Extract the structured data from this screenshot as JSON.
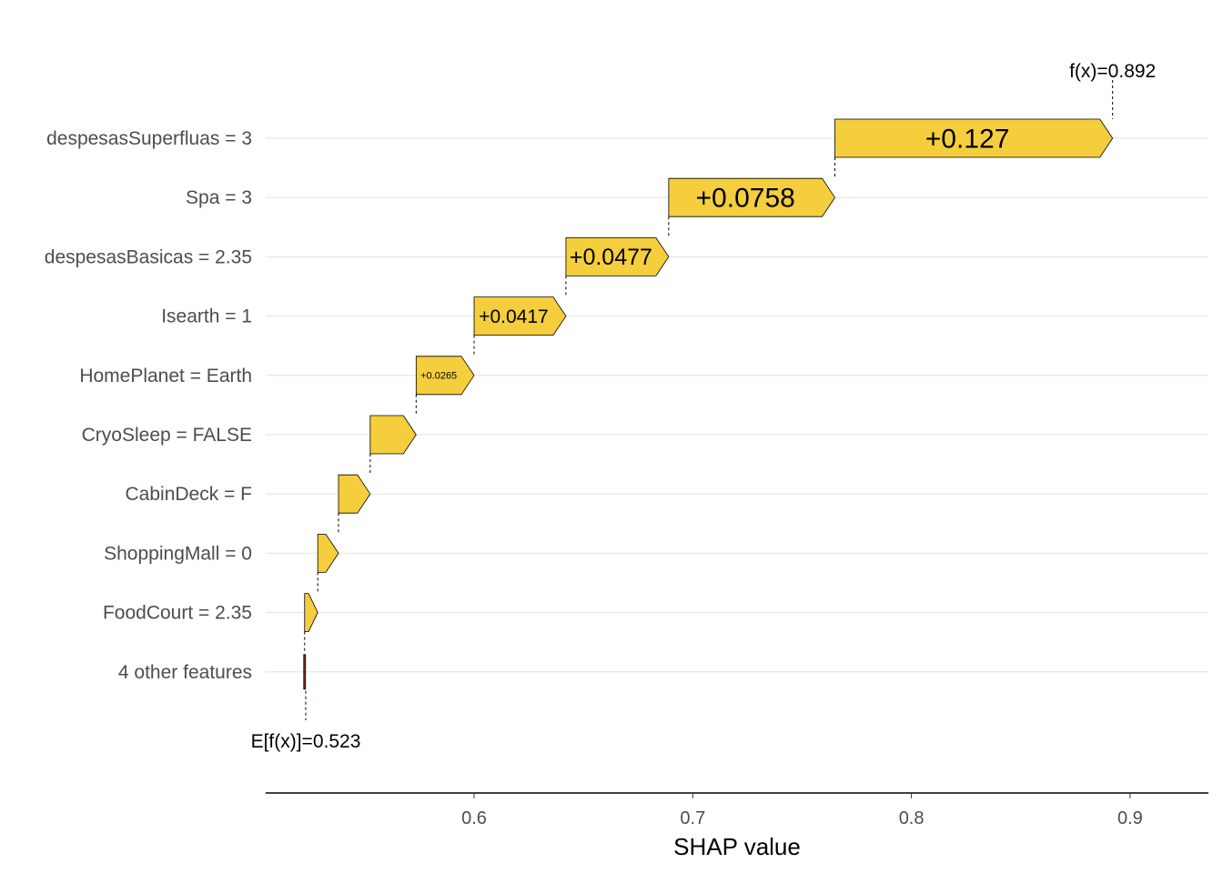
{
  "chart_data": {
    "type": "waterfall",
    "xlabel": "SHAP value",
    "base_label": "E[f(x)]=0.523",
    "final_label": "f(x)=0.892",
    "base_value": 0.523,
    "final_value": 0.892,
    "xlim": [
      0.51,
      0.935
    ],
    "xticks": [
      0.6,
      0.7,
      0.8,
      0.9
    ],
    "xtick_labels": [
      "0.6",
      "0.7",
      "0.8",
      "0.9"
    ],
    "bar_color": "#F5CE3D",
    "features": [
      {
        "label": "despesasSuperfluas = 3",
        "start": 0.765,
        "end": 0.892,
        "text": "+0.127",
        "fontSize": 30
      },
      {
        "label": "Spa = 3",
        "start": 0.689,
        "end": 0.765,
        "text": "+0.0758",
        "fontSize": 30
      },
      {
        "label": "despesasBasicas = 2.35",
        "start": 0.642,
        "end": 0.689,
        "text": "+0.0477",
        "fontSize": 25
      },
      {
        "label": "Isearth = 1",
        "start": 0.6,
        "end": 0.642,
        "text": "+0.0417",
        "fontSize": 21
      },
      {
        "label": "HomePlanet = Earth",
        "start": 0.5735,
        "end": 0.6,
        "text": "+0.0265",
        "fontSize": 11
      },
      {
        "label": "CryoSleep = FALSE",
        "start": 0.5525,
        "end": 0.5735,
        "text": "",
        "fontSize": 0
      },
      {
        "label": "CabinDeck = F",
        "start": 0.538,
        "end": 0.5525,
        "text": "",
        "fontSize": 0
      },
      {
        "label": "ShoppingMall = 0",
        "start": 0.5285,
        "end": 0.538,
        "text": "",
        "fontSize": 0
      },
      {
        "label": "FoodCourt = 2.35",
        "start": 0.5225,
        "end": 0.5285,
        "text": "",
        "fontSize": 0
      },
      {
        "label": "4 other features",
        "start": 0.5225,
        "end": 0.5226,
        "text": "",
        "fontSize": 0
      }
    ]
  }
}
